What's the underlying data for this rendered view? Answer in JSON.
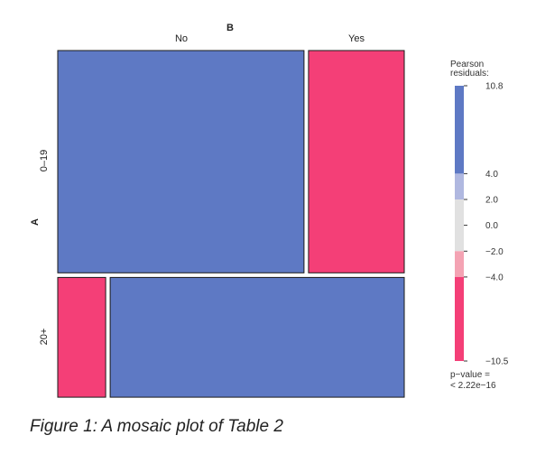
{
  "chart_data": {
    "type": "mosaic",
    "row_variable": "A",
    "column_variable": "B",
    "rows": [
      "0–19",
      "20+"
    ],
    "columns": [
      "No",
      "Yes"
    ],
    "row_shares": [
      0.65,
      0.35
    ],
    "column_shares_by_row": [
      [
        0.72,
        0.28
      ],
      [
        0.14,
        0.86
      ]
    ],
    "residual_sign": [
      [
        "positive",
        "negative"
      ],
      [
        "negative",
        "positive"
      ]
    ],
    "legend": {
      "title_line1": "Pearson",
      "title_line2": "residuals:",
      "max": 10.8,
      "min": -10.5,
      "tick_labels": [
        "10.8",
        "4.0",
        "2.0",
        "0.0",
        "−2.0",
        "−4.0",
        "−10.5"
      ],
      "p_value_line1": "p−value =",
      "p_value_line2": "< 2.22e−16"
    },
    "colors": {
      "strong_positive": "#5e79c4",
      "weak_positive": "#b0b8e0",
      "neutral": "#e1e1e1",
      "weak_negative": "#f4a3b3",
      "strong_negative": "#f43f77"
    }
  },
  "caption": "Figure 1: A mosaic plot of Table 2"
}
